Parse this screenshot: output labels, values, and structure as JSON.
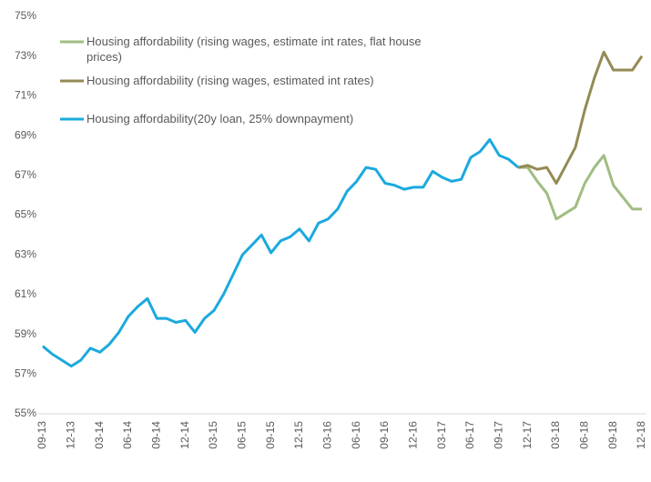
{
  "chart_data": {
    "type": "line",
    "categories": [
      "09-13",
      null,
      null,
      "12-13",
      null,
      null,
      "03-14",
      null,
      null,
      "06-14",
      null,
      null,
      "09-14",
      null,
      null,
      "12-14",
      null,
      null,
      "03-15",
      null,
      null,
      "06-15",
      null,
      null,
      "09-15",
      null,
      null,
      "12-15",
      null,
      null,
      "03-16",
      null,
      null,
      "06-16",
      null,
      null,
      "09-16",
      null,
      null,
      "12-16",
      null,
      null,
      "03-17",
      null,
      null,
      "06-17",
      null,
      null,
      "09-17",
      null,
      null,
      "12-17",
      null,
      null,
      "03-18",
      null,
      null,
      "06-18",
      null,
      null,
      "09-18",
      null,
      null,
      "12-18"
    ],
    "series": [
      {
        "name": "Housing affordability (rising wages, estimate int rates, flat house prices)",
        "color": "#9fbd80",
        "values": [
          null,
          null,
          null,
          null,
          null,
          null,
          null,
          null,
          null,
          null,
          null,
          null,
          null,
          null,
          null,
          null,
          null,
          null,
          null,
          null,
          null,
          null,
          null,
          null,
          null,
          null,
          null,
          null,
          null,
          null,
          null,
          null,
          null,
          null,
          null,
          null,
          null,
          null,
          null,
          null,
          null,
          null,
          null,
          null,
          null,
          null,
          null,
          null,
          null,
          null,
          67.4,
          67.4,
          66.7,
          66.1,
          64.8,
          65.1,
          65.4,
          66.6,
          67.4,
          68.0,
          66.5,
          65.9,
          65.3,
          65.3
        ]
      },
      {
        "name": "Housing affordability (rising wages, estimated int rates)",
        "color": "#948a54",
        "values": [
          null,
          null,
          null,
          null,
          null,
          null,
          null,
          null,
          null,
          null,
          null,
          null,
          null,
          null,
          null,
          null,
          null,
          null,
          null,
          null,
          null,
          null,
          null,
          null,
          null,
          null,
          null,
          null,
          null,
          null,
          null,
          null,
          null,
          null,
          null,
          null,
          null,
          null,
          null,
          null,
          null,
          null,
          null,
          null,
          null,
          null,
          null,
          null,
          null,
          null,
          67.4,
          67.5,
          67.3,
          67.4,
          66.6,
          67.5,
          68.4,
          70.3,
          71.9,
          73.2,
          72.3,
          72.3,
          72.3,
          73.0
        ]
      },
      {
        "name": "Housing affordability(20y loan, 25% downpayment)",
        "color": "#1ba9de",
        "values": [
          58.4,
          58.0,
          57.7,
          57.4,
          57.7,
          58.3,
          58.1,
          58.5,
          59.1,
          59.9,
          60.4,
          60.8,
          59.8,
          59.8,
          59.6,
          59.7,
          59.1,
          59.8,
          60.2,
          61.0,
          62.0,
          63.0,
          63.5,
          64.0,
          63.1,
          63.7,
          63.9,
          64.3,
          63.7,
          64.6,
          64.8,
          65.3,
          66.2,
          66.7,
          67.4,
          67.3,
          66.6,
          66.5,
          66.3,
          66.4,
          66.4,
          67.2,
          66.9,
          66.7,
          66.8,
          67.9,
          68.2,
          68.8,
          68.0,
          67.8,
          67.4,
          null,
          null,
          null,
          null,
          null,
          null,
          null,
          null,
          null,
          null,
          null,
          null,
          null
        ]
      }
    ],
    "ylim": [
      55,
      75
    ],
    "yticks": [
      {
        "value": 55,
        "label": "55%"
      },
      {
        "value": 57,
        "label": "57%"
      },
      {
        "value": 59,
        "label": "59%"
      },
      {
        "value": 61,
        "label": "61%"
      },
      {
        "value": 63,
        "label": "63%"
      },
      {
        "value": 65,
        "label": "65%"
      },
      {
        "value": 67,
        "label": "67%"
      },
      {
        "value": 69,
        "label": "69%"
      },
      {
        "value": 71,
        "label": "71%"
      },
      {
        "value": 73,
        "label": "73%"
      },
      {
        "value": 75,
        "label": "75%"
      }
    ],
    "grid": false
  }
}
